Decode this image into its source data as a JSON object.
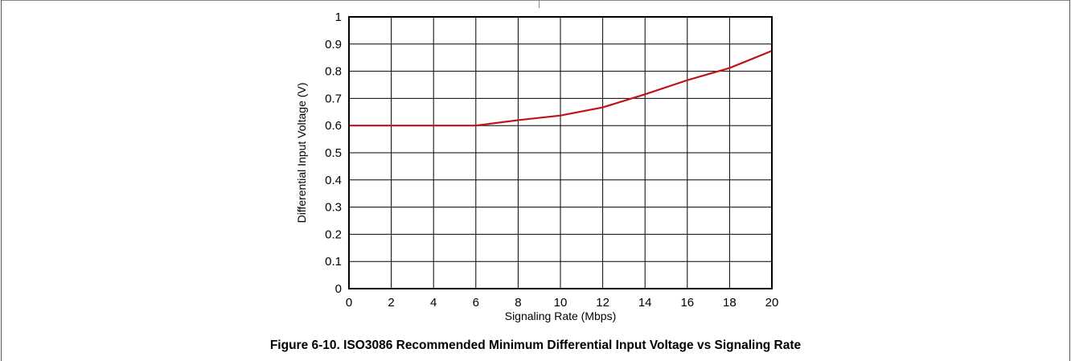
{
  "chart_data": {
    "type": "line",
    "title": "",
    "xlabel": "Signaling Rate (Mbps)",
    "ylabel": "Differential Input Voltage (V)",
    "xlim": [
      0,
      20
    ],
    "ylim": [
      0,
      1
    ],
    "x_ticks": [
      0,
      2,
      4,
      6,
      8,
      10,
      12,
      14,
      16,
      18,
      20
    ],
    "y_ticks": [
      0,
      0.1,
      0.2,
      0.3,
      0.4,
      0.5,
      0.6,
      0.7,
      0.8,
      0.9,
      1
    ],
    "grid": true,
    "legend": "none",
    "series": [
      {
        "color": "#c0121b",
        "x": [
          0,
          2,
          4,
          6,
          8,
          10,
          12,
          14,
          16,
          18,
          20
        ],
        "y": [
          0.6,
          0.6,
          0.6,
          0.6,
          0.62,
          0.637,
          0.667,
          0.715,
          0.767,
          0.812,
          0.875
        ]
      }
    ]
  },
  "caption": "Figure 6-10. ISO3086 Recommended Minimum Differential Input Voltage vs Signaling Rate"
}
